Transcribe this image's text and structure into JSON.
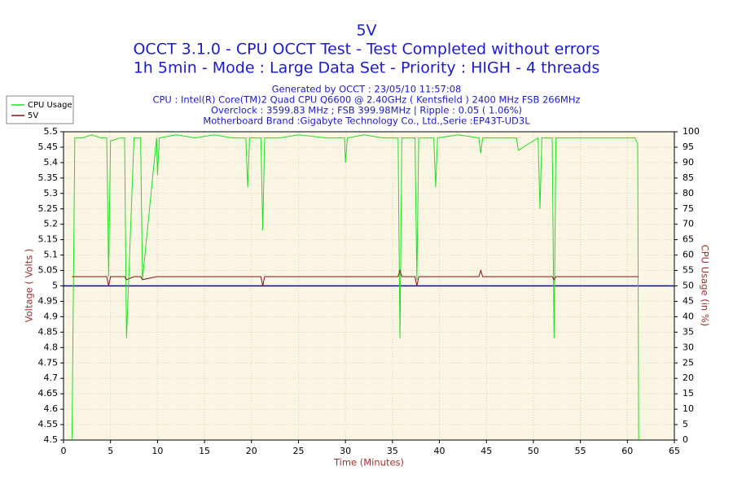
{
  "chart_data": {
    "type": "line",
    "title": "5V",
    "subtitle": [
      "OCCT 3.1.0 - CPU OCCT Test - Test Completed without errors",
      "1h 5min - Mode : Large Data Set - Priority : HIGH - 4 threads"
    ],
    "info": [
      "Generated by OCCT : 23/05/10 11:57:08",
      "CPU : Intel(R) Core(TM)2 Quad CPU Q6600 @ 2.40GHz ( Kentsfield ) 2400 MHz FSB 266MHz",
      "Overclock : 3599.83 MHz ; FSB 399.98MHz | Ripple : 0.05 ( 1.06%)",
      "Motherboard Brand :Gigabyte Technology Co., Ltd.,Serie :EP43T-UD3L"
    ],
    "x_label": "Time (Minutes)",
    "y_label": "Voltage ( Volts )",
    "y2_label": "CPU Usage (in %)",
    "x": [
      0.9,
      1.2,
      2,
      3,
      4,
      4.6,
      4.8,
      5.0,
      6.0,
      6.5,
      6.7,
      7.5,
      8.2,
      8.4,
      9.9,
      10.0,
      10.2,
      12,
      14,
      16,
      18,
      19.4,
      19.6,
      19.8,
      21.0,
      21.2,
      21.4,
      23,
      25,
      28,
      29.9,
      30.0,
      30.2,
      32,
      34,
      35.6,
      35.8,
      36.0,
      37.4,
      37.6,
      37.8,
      39.4,
      39.6,
      39.8,
      42,
      44.2,
      44.4,
      44.6,
      47,
      48.2,
      48.4,
      50.5,
      50.7,
      50.9,
      52.0,
      52.2,
      52.4,
      55,
      58,
      60.8,
      61.1,
      61.2
    ],
    "series": [
      {
        "name": "CPU Usage",
        "color": "#22dd22",
        "axis": "y2",
        "values": [
          0,
          98,
          98,
          99,
          98,
          98,
          53,
          97,
          98,
          98,
          33,
          98,
          98,
          52,
          98,
          86,
          98,
          99,
          98,
          99,
          98,
          98,
          82,
          98,
          98,
          68,
          98,
          98,
          99,
          98,
          98,
          90,
          98,
          99,
          98,
          98,
          33,
          98,
          98,
          52,
          98,
          98,
          82,
          98,
          99,
          98,
          93,
          98,
          98,
          98,
          94,
          98,
          75,
          98,
          98,
          33,
          98,
          98,
          98,
          98,
          96,
          0
        ]
      },
      {
        "name": "5V",
        "color": "#8b1010",
        "values": [
          5.03,
          5.03,
          5.03,
          5.03,
          5.03,
          5.03,
          5.0,
          5.03,
          5.03,
          5.03,
          5.02,
          5.03,
          5.03,
          5.02,
          5.03,
          5.03,
          5.03,
          5.03,
          5.03,
          5.03,
          5.03,
          5.03,
          5.03,
          5.03,
          5.03,
          5.0,
          5.03,
          5.03,
          5.03,
          5.03,
          5.03,
          5.03,
          5.03,
          5.03,
          5.03,
          5.03,
          5.05,
          5.03,
          5.03,
          5.0,
          5.03,
          5.03,
          5.03,
          5.03,
          5.03,
          5.03,
          5.05,
          5.03,
          5.03,
          5.03,
          5.03,
          5.03,
          5.03,
          5.03,
          5.03,
          5.02,
          5.03,
          5.03,
          5.03,
          5.03,
          5.03,
          5.03
        ]
      }
    ],
    "reference_line": {
      "value": 5,
      "color": "#0000cc"
    },
    "xlim": [
      0,
      65
    ],
    "xticks": [
      0,
      5,
      10,
      15,
      20,
      25,
      30,
      35,
      40,
      45,
      50,
      55,
      60,
      65
    ],
    "ylim": [
      4.5,
      5.5
    ],
    "yticks": [
      4.5,
      4.55,
      4.6,
      4.65,
      4.7,
      4.75,
      4.8,
      4.85,
      4.9,
      4.95,
      5,
      5.05,
      5.1,
      5.15,
      5.2,
      5.25,
      5.3,
      5.35,
      5.4,
      5.45,
      5.5
    ],
    "y2lim": [
      0,
      100
    ],
    "y2ticks": [
      0,
      5,
      10,
      15,
      20,
      25,
      30,
      35,
      40,
      45,
      50,
      55,
      60,
      65,
      70,
      75,
      80,
      85,
      90,
      95,
      100
    ],
    "grid": true,
    "legend": "top-left"
  }
}
